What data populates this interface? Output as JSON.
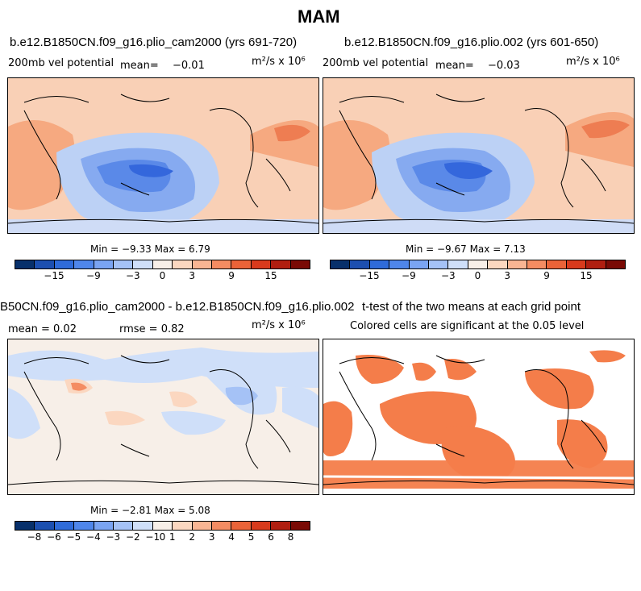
{
  "figure": {
    "title": "MAM"
  },
  "panels": [
    {
      "title": "b.e12.B1850CN.f09_g16.plio_cam2000 (yrs 691-720)",
      "variable": "200mb vel potential",
      "mean_label": "mean=",
      "mean_value": "−0.01",
      "units": "m²/s x 10⁶",
      "minmax": "Min =  −9.33 Max =   6.79"
    },
    {
      "title": "b.e12.B1850CN.f09_g16.plio.002 (yrs 601-650)",
      "variable": "200mb vel potential",
      "mean_label": "mean=",
      "mean_value": "−0.03",
      "units": "m²/s x 10⁶",
      "minmax": "Min =  −9.67 Max =   7.13"
    },
    {
      "title": "B50CN.f09_g16.plio_cam2000 - b.e12.B1850CN.f09_g16.plio.002",
      "mean_text": "mean =    0.02",
      "rmse_text": "rmse =    0.82",
      "units": "m²/s x 10⁶",
      "minmax": "Min =  −2.81 Max =   5.08"
    },
    {
      "title": "t-test of the two means at each grid point",
      "subtitle": "Colored cells are significant at the 0.05 level"
    }
  ],
  "colorbar_full": {
    "colors": [
      "#08306b",
      "#1c4fb0",
      "#2f6bd9",
      "#4f86ea",
      "#7aa4f2",
      "#a5c2f6",
      "#cfdff9",
      "#f7efe8",
      "#fbd7c0",
      "#f9b593",
      "#f48c62",
      "#ea6338",
      "#d83a1c",
      "#b01e10",
      "#7a0a05"
    ],
    "ticks": [
      "−15",
      "−9",
      "−3",
      "0",
      "3",
      "9",
      "15"
    ]
  },
  "colorbar_diff": {
    "colors": [
      "#08306b",
      "#1c4fb0",
      "#2f6bd9",
      "#4f86ea",
      "#7aa4f2",
      "#a5c2f6",
      "#cfdff9",
      "#f7efe8",
      "#fbd7c0",
      "#f9b593",
      "#f48c62",
      "#ea6338",
      "#d83a1c",
      "#b01e10",
      "#7a0a05"
    ],
    "ticks": [
      "−8",
      "−6",
      "−5",
      "−4",
      "−3",
      "−2",
      "−1",
      "0",
      "1",
      "2",
      "3",
      "4",
      "5",
      "6",
      "8"
    ]
  }
}
